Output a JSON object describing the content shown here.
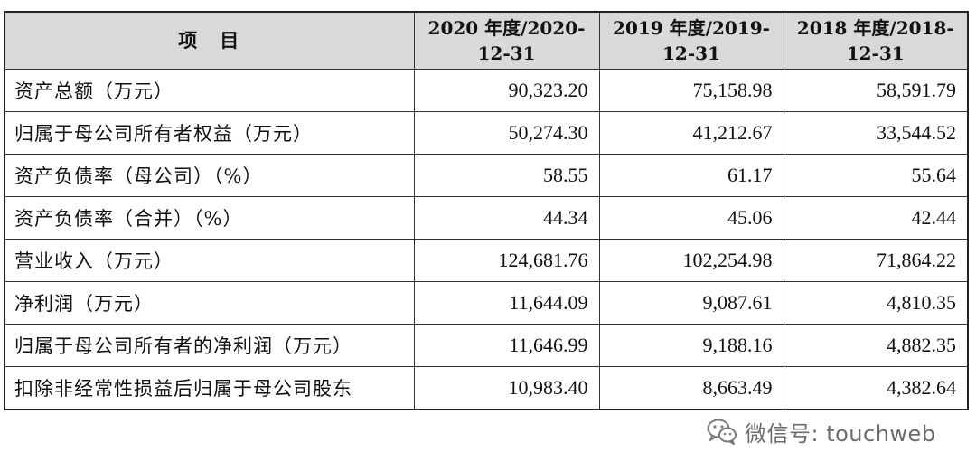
{
  "table": {
    "headers": [
      "项　目",
      "2020 年度/2020-12-31",
      "2019 年度/2019-12-31",
      "2018 年度/2018-12-31"
    ],
    "header_lines": [
      [
        "项　目"
      ],
      [
        "2020 年度/2020-",
        "12-31"
      ],
      [
        "2019 年度/2019-",
        "12-31"
      ],
      [
        "2018 年度/2018-",
        "12-31"
      ]
    ],
    "rows": [
      {
        "label": "资产总额（万元）",
        "values": [
          "90,323.20",
          "75,158.98",
          "58,591.79"
        ]
      },
      {
        "label": "归属于母公司所有者权益（万元）",
        "values": [
          "50,274.30",
          "41,212.67",
          "33,544.52"
        ]
      },
      {
        "label": "资产负债率（母公司）（%）",
        "values": [
          "58.55",
          "61.17",
          "55.64"
        ]
      },
      {
        "label": "资产负债率（合并）（%）",
        "values": [
          "44.34",
          "45.06",
          "42.44"
        ]
      },
      {
        "label": "营业收入（万元）",
        "values": [
          "124,681.76",
          "102,254.98",
          "71,864.22"
        ]
      },
      {
        "label": "净利润（万元）",
        "values": [
          "11,644.09",
          "9,087.61",
          "4,810.35"
        ]
      },
      {
        "label": "归属于母公司所有者的净利润（万元）",
        "values": [
          "11,646.99",
          "9,188.16",
          "4,882.35"
        ]
      },
      {
        "label": "扣除非经常性损益后归属于母公司股东",
        "values": [
          "10,983.40",
          "8,663.49",
          "4,382.64"
        ]
      }
    ]
  },
  "watermark": {
    "icon": "wechat-icon",
    "text": "微信号: touchweb",
    "color": "#6b6b6b"
  },
  "colors": {
    "header_bg": "#d9d9d9",
    "border": "#333333"
  }
}
